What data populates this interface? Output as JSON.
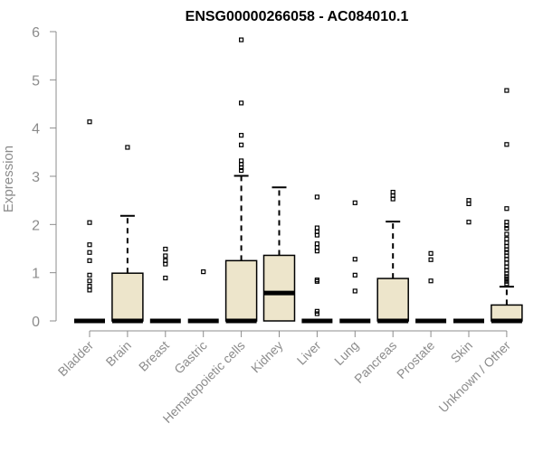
{
  "chart_data": {
    "type": "box",
    "title": "ENSG00000266058 - AC084010.1",
    "xlabel": "",
    "ylabel": "Expression",
    "ylim": [
      0,
      6
    ],
    "yticks": [
      0,
      1,
      2,
      3,
      4,
      5,
      6
    ],
    "colors": {
      "box_fill": "#ede5cb",
      "stroke": "#000000",
      "axis": "#8c8c8c"
    },
    "categories": [
      "Bladder",
      "Brain",
      "Breast",
      "Gastric",
      "Hematopoietic cells",
      "Kidney",
      "Liver",
      "Lung",
      "Pancreas",
      "Prostate",
      "Skin",
      "Unknown / Other"
    ],
    "boxes": [
      {
        "category": "Bladder",
        "q1": 0,
        "median": 0,
        "q3": 0,
        "whisker_low": 0,
        "whisker_high": 0,
        "outliers": [
          4.13,
          2.04,
          1.58,
          1.42,
          1.25,
          0.95,
          0.83,
          0.72,
          0.64
        ]
      },
      {
        "category": "Brain",
        "q1": 0,
        "median": 0,
        "q3": 0.99,
        "whisker_low": 0,
        "whisker_high": 2.18,
        "outliers": [
          3.6
        ]
      },
      {
        "category": "Breast",
        "q1": 0,
        "median": 0,
        "q3": 0,
        "whisker_low": 0,
        "whisker_high": 0,
        "outliers": [
          1.49,
          1.35,
          1.25,
          1.18,
          0.89
        ]
      },
      {
        "category": "Gastric",
        "q1": 0,
        "median": 0,
        "q3": 0,
        "whisker_low": 0,
        "whisker_high": 0,
        "outliers": [
          1.02
        ]
      },
      {
        "category": "Hematopoietic cells",
        "q1": 0,
        "median": 0,
        "q3": 1.25,
        "whisker_low": 0,
        "whisker_high": 3.01,
        "outliers": [
          5.83,
          4.52,
          3.85,
          3.65,
          3.32,
          3.25,
          3.18,
          3.12
        ]
      },
      {
        "category": "Kidney",
        "q1": 0,
        "median": 0.58,
        "q3": 1.36,
        "whisker_low": 0,
        "whisker_high": 2.77,
        "outliers": []
      },
      {
        "category": "Liver",
        "q1": 0,
        "median": 0,
        "q3": 0,
        "whisker_low": 0,
        "whisker_high": 0,
        "outliers": [
          2.57,
          1.93,
          1.85,
          1.78,
          1.6,
          1.52,
          1.45,
          0.85,
          0.82,
          0.2,
          0.15
        ]
      },
      {
        "category": "Lung",
        "q1": 0,
        "median": 0,
        "q3": 0,
        "whisker_low": 0,
        "whisker_high": 0,
        "outliers": [
          2.45,
          1.28,
          0.95,
          0.62
        ]
      },
      {
        "category": "Pancreas",
        "q1": 0,
        "median": 0,
        "q3": 0.88,
        "whisker_low": 0,
        "whisker_high": 2.06,
        "outliers": [
          2.67,
          2.6,
          2.53
        ]
      },
      {
        "category": "Prostate",
        "q1": 0,
        "median": 0,
        "q3": 0,
        "whisker_low": 0,
        "whisker_high": 0,
        "outliers": [
          1.4,
          1.27,
          0.83
        ]
      },
      {
        "category": "Skin",
        "q1": 0,
        "median": 0,
        "q3": 0,
        "whisker_low": 0,
        "whisker_high": 0,
        "outliers": [
          2.5,
          2.43,
          2.05
        ]
      },
      {
        "category": "Unknown / Other",
        "q1": 0,
        "median": 0,
        "q3": 0.33,
        "whisker_low": 0,
        "whisker_high": 0.71,
        "outliers": [
          4.78,
          3.66,
          2.33,
          2.05,
          1.98,
          1.92,
          1.8,
          1.7,
          1.62,
          1.55,
          1.48,
          1.42,
          1.35,
          1.28,
          1.2,
          1.12,
          1.05,
          0.98,
          0.92,
          0.87,
          0.82,
          0.77
        ]
      }
    ]
  }
}
